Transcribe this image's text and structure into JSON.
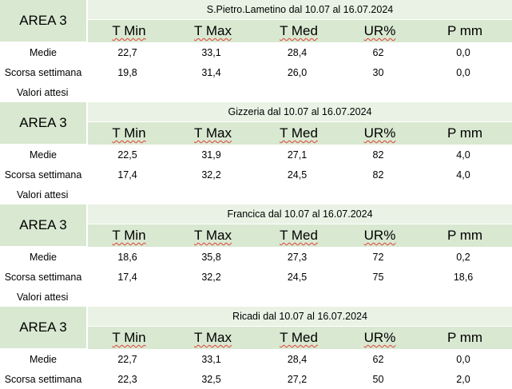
{
  "blocks": [
    {
      "area": "AREA 3",
      "station": "S.Pietro.Lametino dal 10.07 al 16.07.2024",
      "headers": [
        "T Min",
        "T Max",
        "T Med",
        "UR%",
        "P mm"
      ],
      "rows": [
        {
          "label": "Medie",
          "values": [
            "22,7",
            "33,1",
            "28,4",
            "62",
            "0,0"
          ]
        },
        {
          "label": "Scorsa settimana",
          "values": [
            "19,8",
            "31,4",
            "26,0",
            "30",
            "0,0"
          ]
        }
      ],
      "expected_label": "Valori attesi"
    },
    {
      "area": "AREA 3",
      "station": "Gizzeria dal 10.07 al 16.07.2024",
      "headers": [
        "T Min",
        "T Max",
        "T Med",
        "UR%",
        "P mm"
      ],
      "rows": [
        {
          "label": "Medie",
          "values": [
            "22,5",
            "31,9",
            "27,1",
            "82",
            "4,0"
          ]
        },
        {
          "label": "Scorsa settimana",
          "values": [
            "17,4",
            "32,2",
            "24,5",
            "82",
            "4,0"
          ]
        }
      ],
      "expected_label": "Valori attesi"
    },
    {
      "area": "AREA 3",
      "station": "Francica dal 10.07 al 16.07.2024",
      "headers": [
        "T Min",
        "T Max",
        "T Med",
        "UR%",
        "P mm"
      ],
      "rows": [
        {
          "label": "Medie",
          "values": [
            "18,6",
            "35,8",
            "27,3",
            "72",
            "0,2"
          ]
        },
        {
          "label": "Scorsa settimana",
          "values": [
            "17,4",
            "32,2",
            "24,5",
            "75",
            "18,6"
          ]
        }
      ],
      "expected_label": "Valori attesi"
    },
    {
      "area": "AREA 3",
      "station": "Ricadi  dal 10.07 al 16.07.2024",
      "headers": [
        "T Min",
        "T Max",
        "T Med",
        "UR%",
        "P mm"
      ],
      "rows": [
        {
          "label": "Medie",
          "values": [
            "22,7",
            "33,1",
            "28,4",
            "62",
            "0,0"
          ]
        },
        {
          "label": "Scorsa settimana",
          "values": [
            "22,3",
            "32,5",
            "27,2",
            "50",
            "2,0"
          ]
        }
      ],
      "expected_label": ""
    }
  ]
}
